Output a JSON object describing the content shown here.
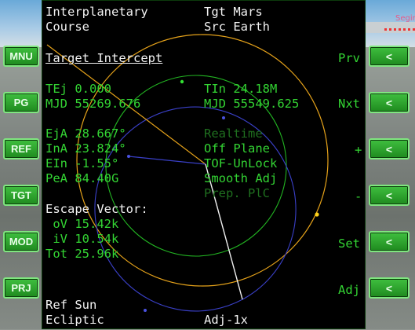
{
  "header": {
    "mode_line1": "Interplanetary",
    "mode_line2": "Course",
    "target": "Tgt Mars",
    "source": "Src Earth"
  },
  "section_title": "Target Intercept",
  "timing": {
    "tej": "TEj 0.000",
    "tin": "TIn 24.18M",
    "mjd_ej": "MJD 55269.676",
    "mjd_in": "MJD 55549.625"
  },
  "ejection": {
    "eja": "EjA 28.667°",
    "ina": "InA 23.824°",
    "ein": "EIn -1.55°",
    "pea": "PeA 84.40G"
  },
  "options": {
    "realtime": "Realtime",
    "plane": "Off Plane",
    "tof": "TOF-UnLock",
    "smooth": "Smooth Adj",
    "prep": "Prep. PlC"
  },
  "escape": {
    "title": "Escape Vector:",
    "ov": " oV 15.42k",
    "iv": " iV 10.54k",
    "tot": "Tot 25.96k"
  },
  "footer": {
    "ref": "Ref Sun",
    "frame": "Ecliptic",
    "adj": "Adj-1x"
  },
  "right_labels": {
    "prv": "Prv",
    "nxt": "Nxt",
    "plus": "+",
    "minus": "-",
    "set": "Set",
    "adj": "Adj"
  },
  "left_buttons": [
    "MNU",
    "PG",
    "REF",
    "TGT",
    "MOD",
    "PRJ"
  ],
  "right_buttons": [
    "<",
    "<",
    "<",
    "<",
    "<",
    "<"
  ],
  "corner_text": "Segir",
  "colors": {
    "text_white": "#f2f2f2",
    "text_green": "#33d433",
    "text_dim_green": "#1f6f1f",
    "orbit_source": "#e5a21a",
    "orbit_target": "#22b422",
    "orbit_transfer": "#3a40c8",
    "button_green": "#2fa82f"
  }
}
